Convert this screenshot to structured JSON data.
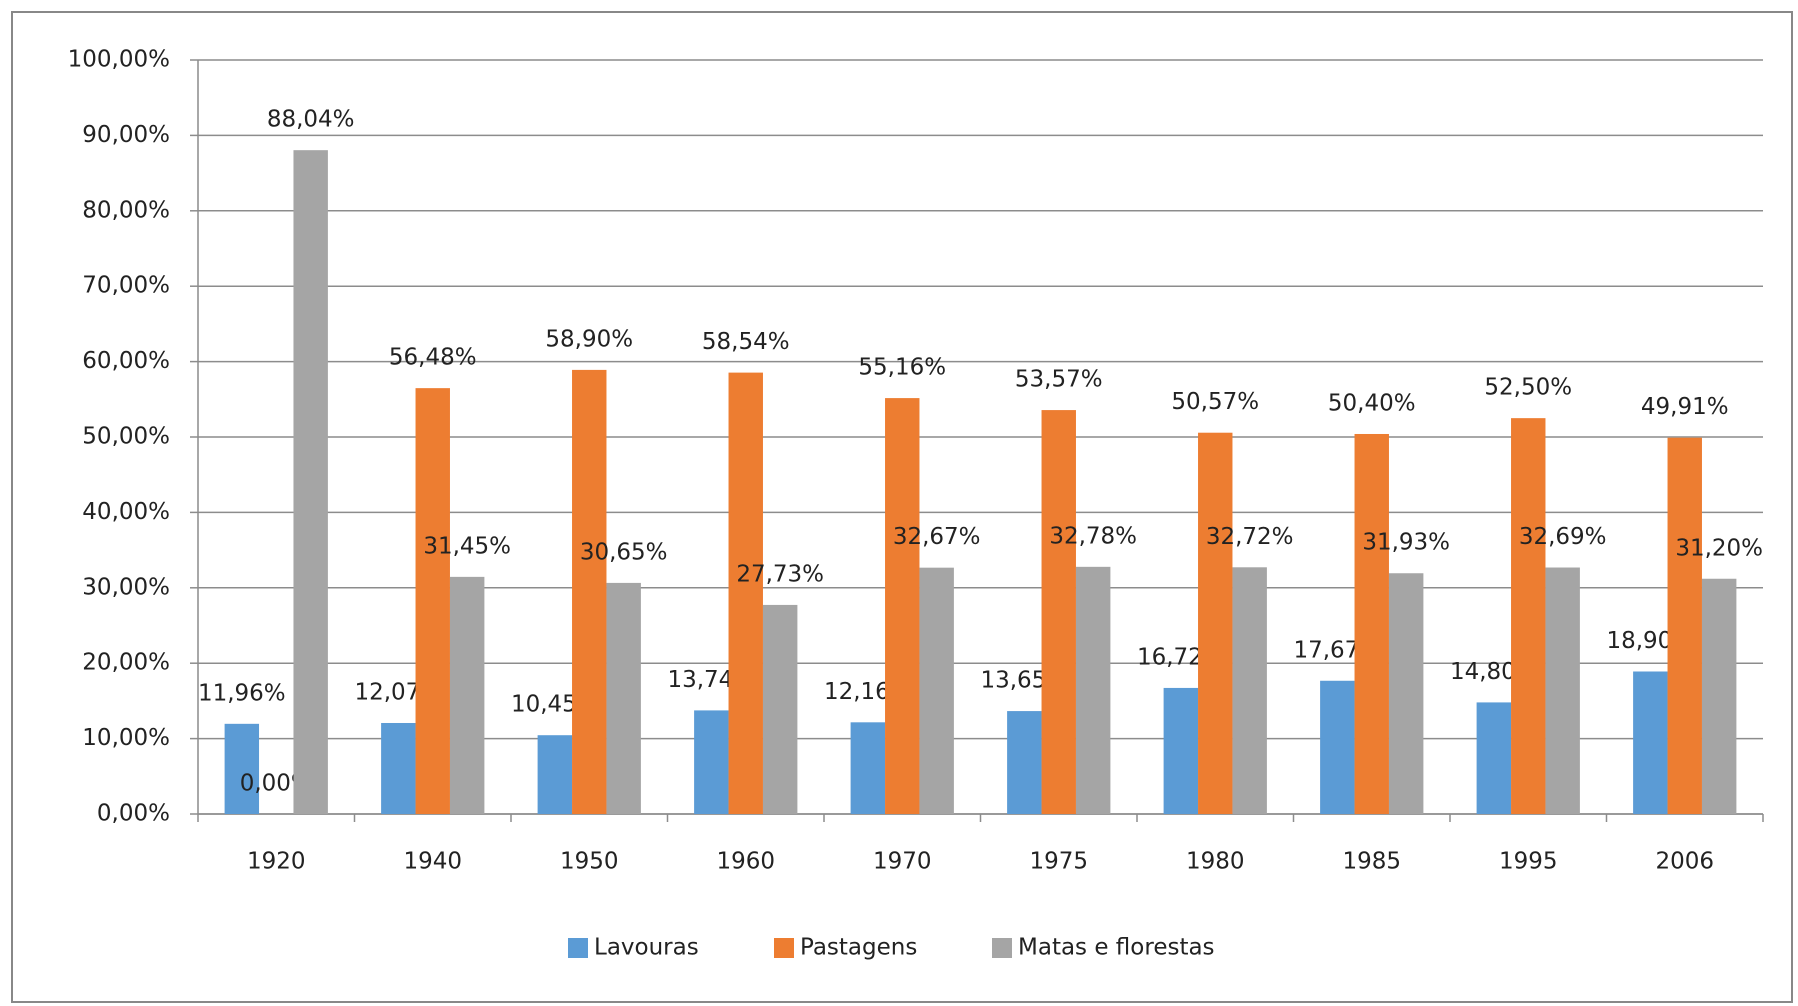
{
  "chart_data": {
    "type": "bar",
    "categories": [
      "1920",
      "1940",
      "1950",
      "1960",
      "1970",
      "1975",
      "1980",
      "1985",
      "1995",
      "2006"
    ],
    "series": [
      {
        "name": "Lavouras",
        "color": "#5b9bd5",
        "values": [
          11.96,
          12.07,
          10.45,
          13.74,
          12.16,
          13.65,
          16.72,
          17.67,
          14.8,
          18.9
        ],
        "value_labels": [
          "11,96%",
          "12,07%",
          "10,45%",
          "13,74%",
          "12,16%",
          "13,65%",
          "16,72%",
          "17,67%",
          "14,80%",
          "18,90%"
        ]
      },
      {
        "name": "Pastagens",
        "color": "#ed7d31",
        "values": [
          0.0,
          56.48,
          58.9,
          58.54,
          55.16,
          53.57,
          50.57,
          50.4,
          52.5,
          49.91
        ],
        "value_labels": [
          "0,00%",
          "56,48%",
          "58,90%",
          "58,54%",
          "55,16%",
          "53,57%",
          "50,57%",
          "50,40%",
          "52,50%",
          "49,91%"
        ]
      },
      {
        "name": "Matas e florestas",
        "color": "#a5a5a5",
        "values": [
          88.04,
          31.45,
          30.65,
          27.73,
          32.67,
          32.78,
          32.72,
          31.93,
          32.69,
          31.2
        ],
        "value_labels": [
          "88,04%",
          "31,45%",
          "30,65%",
          "27,73%",
          "32,67%",
          "32,78%",
          "32,72%",
          "31,93%",
          "32,69%",
          "31,20%"
        ]
      }
    ],
    "ylim": [
      0,
      100
    ],
    "yticks": [
      {
        "value": 0,
        "label": "0,00%"
      },
      {
        "value": 10,
        "label": "10,00%"
      },
      {
        "value": 20,
        "label": "20,00%"
      },
      {
        "value": 30,
        "label": "30,00%"
      },
      {
        "value": 40,
        "label": "40,00%"
      },
      {
        "value": 50,
        "label": "50,00%"
      },
      {
        "value": 60,
        "label": "60,00%"
      },
      {
        "value": 70,
        "label": "70,00%"
      },
      {
        "value": 80,
        "label": "80,00%"
      },
      {
        "value": 90,
        "label": "90,00%"
      },
      {
        "value": 100,
        "label": "100,00%"
      }
    ],
    "grid": true,
    "legend": "bottom"
  }
}
